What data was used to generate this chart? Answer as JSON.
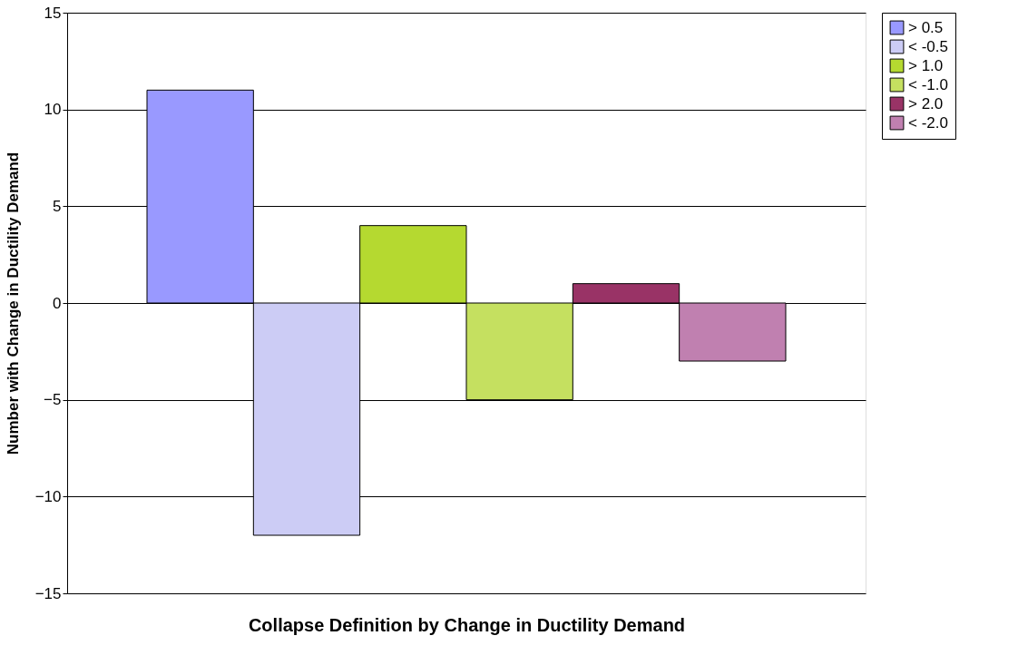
{
  "chart_data": {
    "type": "bar",
    "xlabel": "Collapse Definition by Change in Ductility Demand",
    "ylabel": "Number with Change in Ductility Demand",
    "categories": [
      null
    ],
    "series": [
      {
        "name": "> 0.5",
        "color": "#9999ff",
        "values": [
          11
        ]
      },
      {
        "name": "< -0.5",
        "color": "#ccccf5",
        "values": [
          -12
        ]
      },
      {
        "name": "> 1.0",
        "color": "#b5d930",
        "values": [
          4
        ]
      },
      {
        "name": "< -1.0",
        "color": "#c5e060",
        "values": [
          -5
        ]
      },
      {
        "name": "> 2.0",
        "color": "#993366",
        "values": [
          1
        ]
      },
      {
        "name": "< -2.0",
        "color": "#c080b0",
        "values": [
          -3
        ]
      }
    ],
    "ylim": [
      -15,
      15
    ],
    "yticks": [
      -15,
      -10,
      -5,
      0,
      5,
      10,
      15
    ],
    "grid": "y",
    "legend": "right",
    "tick_labels": "y"
  }
}
